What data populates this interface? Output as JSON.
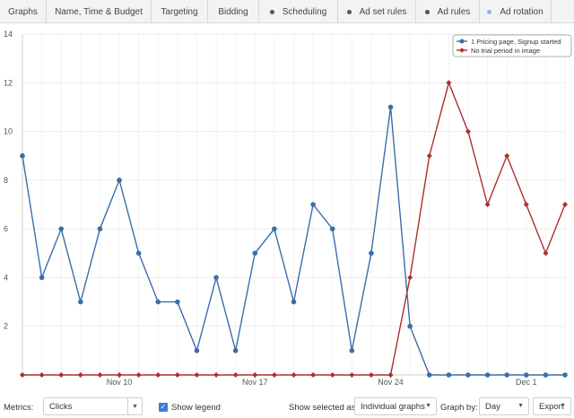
{
  "tabs": [
    {
      "label": "Graphs",
      "active": true,
      "dot": null
    },
    {
      "label": "Name, Time & Budget",
      "active": false,
      "dot": null
    },
    {
      "label": "Targeting",
      "active": false,
      "dot": null
    },
    {
      "label": "Bidding",
      "active": false,
      "dot": null
    },
    {
      "label": "Scheduling",
      "active": false,
      "dot": "#555555"
    },
    {
      "label": "Ad set rules",
      "active": false,
      "dot": "#555555"
    },
    {
      "label": "Ad rules",
      "active": false,
      "dot": "#555555"
    },
    {
      "label": "Ad rotation",
      "active": false,
      "dot": "#8ab4e8"
    }
  ],
  "chart_data": {
    "type": "line",
    "ylim": [
      0,
      14
    ],
    "yticks": [
      "2",
      "4",
      "6",
      "8",
      "10",
      "12",
      "14"
    ],
    "ytick_values": [
      2,
      4,
      6,
      8,
      10,
      12,
      14
    ],
    "xtick_labels": [
      {
        "label": "Nov 10",
        "at_index": 5
      },
      {
        "label": "Nov 17",
        "at_index": 12
      },
      {
        "label": "Nov 24",
        "at_index": 19
      },
      {
        "label": "Dec 1",
        "at_index": 26
      }
    ],
    "num_points": 29,
    "grid": true,
    "legend_position": "top-right",
    "series": [
      {
        "name": "1 Pricing page, Signup started",
        "color": "#3a6ea8",
        "marker": "circle",
        "values": [
          9,
          4,
          6,
          3,
          6,
          8,
          5,
          3,
          3,
          1,
          4,
          1,
          5,
          6,
          3,
          7,
          6,
          1,
          5,
          11,
          2,
          0,
          0,
          0,
          0,
          0,
          0,
          0,
          0
        ]
      },
      {
        "name": "No trial period in image",
        "color": "#a8302e",
        "marker": "diamond",
        "values": [
          0,
          0,
          0,
          0,
          0,
          0,
          0,
          0,
          0,
          0,
          0,
          0,
          0,
          0,
          0,
          0,
          0,
          0,
          0,
          0,
          4,
          9,
          12,
          10,
          7,
          9,
          7,
          5,
          7
        ]
      }
    ]
  },
  "bottom": {
    "metrics_label": "Metrics:",
    "metrics_value": "Clicks",
    "show_legend_label": "Show legend",
    "show_legend_checked": true,
    "show_selected_label": "Show selected as:",
    "show_selected_value": "Individual graphs",
    "graph_by_label": "Graph by:",
    "graph_by_value": "Day",
    "export_label": "Export"
  }
}
